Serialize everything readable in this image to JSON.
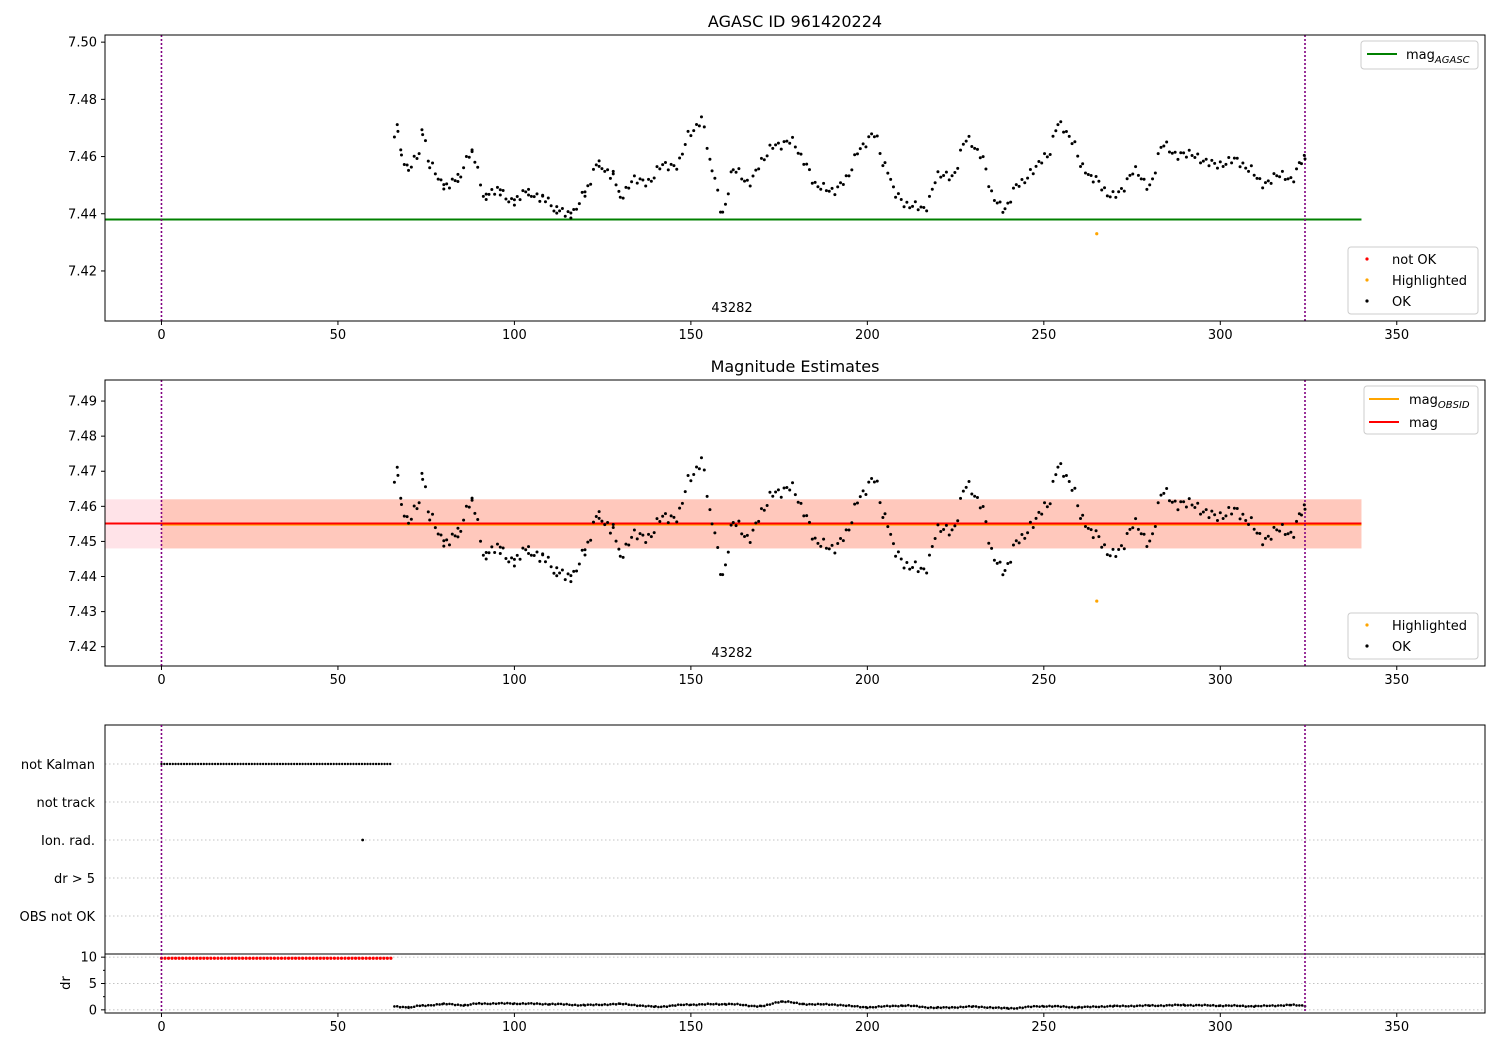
{
  "colors": {
    "ok": "#000000",
    "not_ok": "#ff0000",
    "highlighted": "#ffa500",
    "mag_agasc": "#008000",
    "mag_obsid": "#ffa500",
    "mag": "#ff0000",
    "obs_boundary": "#800080",
    "band_obsid": "#ffa07a",
    "band_mag": "#ffc0cb",
    "grid": "#b0b0b0"
  },
  "chart_data": [
    {
      "id": "agasc",
      "type": "scatter",
      "title": "AGASC ID 961420224",
      "xlim": [
        -16,
        375
      ],
      "ylim": [
        7.4025,
        7.5025
      ],
      "x_ticks": [
        0,
        50,
        100,
        150,
        200,
        250,
        300,
        350
      ],
      "y_ticks": [
        7.42,
        7.44,
        7.46,
        7.48,
        7.5
      ],
      "y_tick_labels": [
        "7.42",
        "7.44",
        "7.46",
        "7.48",
        "7.50"
      ],
      "obs_boundaries": [
        0,
        324
      ],
      "obsid_label": {
        "text": "43282",
        "x": 162
      },
      "lines": [
        {
          "name": "mag",
          "subscript": "AGASC",
          "color_key": "mag_agasc",
          "y": 7.438,
          "x0": -16,
          "x1": 340
        }
      ],
      "legend_lines": {
        "position": "upper right",
        "items": [
          {
            "label": "mag",
            "subscript": "AGASC",
            "color_key": "mag_agasc"
          }
        ]
      },
      "legend_points": {
        "position": "lower right",
        "items": [
          {
            "label": "not OK",
            "color_key": "not_ok"
          },
          {
            "label": "Highlighted",
            "color_key": "highlighted"
          },
          {
            "label": "OK",
            "color_key": "ok"
          }
        ]
      },
      "highlighted_points": [
        [
          265,
          7.433
        ]
      ],
      "ok_anchors": [
        [
          66,
          7.466
        ],
        [
          67,
          7.47
        ],
        [
          68,
          7.461
        ],
        [
          70,
          7.456
        ],
        [
          73,
          7.46
        ],
        [
          74,
          7.469
        ],
        [
          76,
          7.458
        ],
        [
          80,
          7.449
        ],
        [
          84,
          7.453
        ],
        [
          88,
          7.461
        ],
        [
          92,
          7.446
        ],
        [
          96,
          7.448
        ],
        [
          100,
          7.444
        ],
        [
          104,
          7.448
        ],
        [
          108,
          7.445
        ],
        [
          112,
          7.442
        ],
        [
          116,
          7.439
        ],
        [
          120,
          7.448
        ],
        [
          124,
          7.457
        ],
        [
          128,
          7.454
        ],
        [
          130,
          7.445
        ],
        [
          134,
          7.453
        ],
        [
          138,
          7.45
        ],
        [
          142,
          7.458
        ],
        [
          146,
          7.456
        ],
        [
          150,
          7.469
        ],
        [
          153,
          7.473
        ],
        [
          156,
          7.455
        ],
        [
          159,
          7.441
        ],
        [
          162,
          7.455
        ],
        [
          166,
          7.451
        ],
        [
          170,
          7.458
        ],
        [
          174,
          7.464
        ],
        [
          178,
          7.466
        ],
        [
          182,
          7.458
        ],
        [
          186,
          7.45
        ],
        [
          190,
          7.447
        ],
        [
          194,
          7.453
        ],
        [
          198,
          7.462
        ],
        [
          202,
          7.469
        ],
        [
          205,
          7.456
        ],
        [
          208,
          7.447
        ],
        [
          212,
          7.443
        ],
        [
          216,
          7.441
        ],
        [
          220,
          7.454
        ],
        [
          224,
          7.452
        ],
        [
          228,
          7.467
        ],
        [
          232,
          7.46
        ],
        [
          236,
          7.446
        ],
        [
          239,
          7.441
        ],
        [
          243,
          7.451
        ],
        [
          247,
          7.455
        ],
        [
          251,
          7.46
        ],
        [
          254,
          7.472
        ],
        [
          258,
          7.465
        ],
        [
          261,
          7.457
        ],
        [
          264,
          7.452
        ],
        [
          268,
          7.447
        ],
        [
          272,
          7.448
        ],
        [
          276,
          7.455
        ],
        [
          280,
          7.45
        ],
        [
          284,
          7.464
        ],
        [
          288,
          7.461
        ],
        [
          292,
          7.46
        ],
        [
          296,
          7.459
        ],
        [
          300,
          7.456
        ],
        [
          304,
          7.46
        ],
        [
          308,
          7.455
        ],
        [
          312,
          7.451
        ],
        [
          316,
          7.453
        ],
        [
          320,
          7.452
        ],
        [
          323,
          7.459
        ],
        [
          324,
          7.459
        ]
      ]
    },
    {
      "id": "estimates",
      "type": "scatter",
      "title": "Magnitude Estimates",
      "xlim": [
        -16,
        375
      ],
      "ylim": [
        7.4145,
        7.496
      ],
      "x_ticks": [
        0,
        50,
        100,
        150,
        200,
        250,
        300,
        350
      ],
      "y_ticks": [
        7.42,
        7.43,
        7.44,
        7.45,
        7.46,
        7.47,
        7.48,
        7.49
      ],
      "y_tick_labels": [
        "7.42",
        "7.43",
        "7.44",
        "7.45",
        "7.46",
        "7.47",
        "7.48",
        "7.49"
      ],
      "obs_boundaries": [
        0,
        324
      ],
      "obsid_label": {
        "text": "43282",
        "x": 162
      },
      "bands": [
        {
          "color_key": "band_mag",
          "y0": 7.448,
          "y1": 7.462,
          "x0": -16,
          "x1": 340,
          "opacity": 0.45
        },
        {
          "color_key": "band_obsid",
          "y0": 7.448,
          "y1": 7.462,
          "x0": 0,
          "x1": 340,
          "opacity": 0.4
        }
      ],
      "lines": [
        {
          "name": "mag",
          "subscript": "OBSID",
          "color_key": "mag_obsid",
          "y": 7.4548,
          "x0": 0,
          "x1": 340
        },
        {
          "name": "mag",
          "color_key": "mag",
          "y": 7.4551,
          "x0": -16,
          "x1": 340
        }
      ],
      "legend_lines": {
        "position": "upper right",
        "items": [
          {
            "label": "mag",
            "subscript": "OBSID",
            "color_key": "mag_obsid"
          },
          {
            "label": "mag",
            "color_key": "mag"
          }
        ]
      },
      "legend_points": {
        "position": "lower right",
        "items": [
          {
            "label": "Highlighted",
            "color_key": "highlighted"
          },
          {
            "label": "OK",
            "color_key": "ok"
          }
        ]
      },
      "highlighted_points": [
        [
          265,
          7.433
        ]
      ],
      "ok_anchors": "same as agasc"
    },
    {
      "id": "flags",
      "type": "scatter",
      "xlim": [
        -16,
        375
      ],
      "categories": [
        "not Kalman",
        "not track",
        "Ion. rad.",
        "dr > 5",
        "OBS not OK"
      ],
      "flag_points": {
        "not Kalman": {
          "x0": 0,
          "x1": 65,
          "step": 0.8
        },
        "Ion. rad.": {
          "points": [
            57
          ]
        }
      },
      "grid": true
    },
    {
      "id": "dr",
      "type": "scatter",
      "ylabel": "dr",
      "xlim": [
        -16,
        375
      ],
      "ylim": [
        -0.6,
        10.6
      ],
      "x_ticks": [
        0,
        50,
        100,
        150,
        200,
        250,
        300,
        350
      ],
      "y_ticks": [
        0,
        5,
        10
      ],
      "y_tick_labels": [
        "0",
        "5",
        "10"
      ],
      "obs_boundaries": [
        0,
        324
      ],
      "not_ok_range": {
        "x0": 0,
        "x1": 65,
        "step": 1.0,
        "value": 9.8
      },
      "ok_anchors": [
        [
          66,
          0.6
        ],
        [
          70,
          0.5
        ],
        [
          74,
          0.8
        ],
        [
          80,
          1.1
        ],
        [
          86,
          0.9
        ],
        [
          90,
          1.2
        ],
        [
          100,
          1.2
        ],
        [
          110,
          1.1
        ],
        [
          120,
          0.9
        ],
        [
          130,
          1.1
        ],
        [
          140,
          0.6
        ],
        [
          150,
          1.0
        ],
        [
          160,
          1.1
        ],
        [
          170,
          0.7
        ],
        [
          176,
          1.6
        ],
        [
          182,
          1.1
        ],
        [
          190,
          1.0
        ],
        [
          200,
          0.5
        ],
        [
          210,
          0.8
        ],
        [
          220,
          0.4
        ],
        [
          230,
          0.6
        ],
        [
          240,
          0.3
        ],
        [
          250,
          0.7
        ],
        [
          260,
          0.5
        ],
        [
          270,
          0.7
        ],
        [
          280,
          0.8
        ],
        [
          290,
          0.9
        ],
        [
          300,
          0.8
        ],
        [
          310,
          0.7
        ],
        [
          320,
          0.9
        ],
        [
          324,
          0.8
        ]
      ]
    }
  ]
}
